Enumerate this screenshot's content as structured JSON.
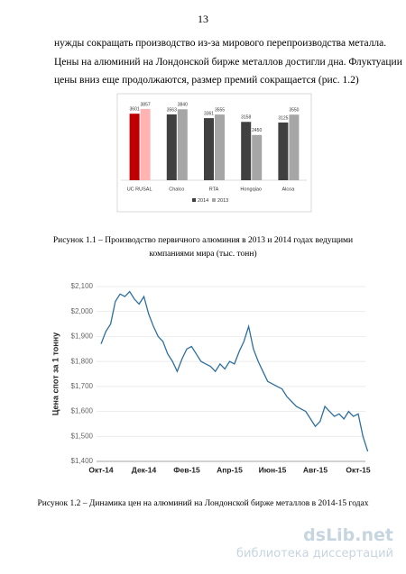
{
  "page_number": "13",
  "paragraph": [
    "нужды сокращать производство из-за мирового перепроизводства металла.",
    "Цены на алюминий на Лондонской бирже металлов достигли дна. Флуктуации",
    "цены вниз еще продолжаются, размер премий сокращается (рис. 1.2)"
  ],
  "chart_data": [
    {
      "type": "bar",
      "categories": [
        "UC RUSAL",
        "Chalco",
        "RTA",
        "Hongqiao",
        "Alcoa"
      ],
      "series": [
        {
          "name": "2014",
          "color": "#404040",
          "colors": [
            "#c00000",
            "#404040",
            "#404040",
            "#404040",
            "#404040"
          ],
          "values": [
            3601,
            3563,
            3361,
            3158,
            3125
          ]
        },
        {
          "name": "2013",
          "color": "#a6a6a6",
          "colors": [
            "#ffb3b3",
            "#a6a6a6",
            "#a6a6a6",
            "#a6a6a6",
            "#a6a6a6"
          ],
          "values": [
            3857,
            3840,
            3555,
            2450,
            3550
          ]
        }
      ],
      "ylim": [
        0,
        4000
      ],
      "legend": "bottom"
    },
    {
      "type": "line",
      "color": "#2e6f9e",
      "y_label": "Цена спот за 1 тонну",
      "categories": [
        "Окт-14",
        null,
        null,
        null,
        null,
        null,
        null,
        null,
        null,
        "Дек-14",
        null,
        null,
        null,
        null,
        null,
        null,
        null,
        null,
        "Фев-15",
        null,
        null,
        null,
        null,
        null,
        null,
        null,
        null,
        "Апр-15",
        null,
        null,
        null,
        null,
        null,
        null,
        null,
        null,
        "Июн-15",
        null,
        null,
        null,
        null,
        null,
        null,
        null,
        null,
        "Авг-15",
        null,
        null,
        null,
        null,
        null,
        null,
        null,
        null,
        "Окт-15",
        null,
        null
      ],
      "values": [
        1870,
        1920,
        1950,
        2040,
        2070,
        2060,
        2080,
        2050,
        2030,
        2060,
        1990,
        1940,
        1900,
        1880,
        1830,
        1800,
        1760,
        1810,
        1850,
        1860,
        1830,
        1800,
        1790,
        1780,
        1760,
        1790,
        1770,
        1800,
        1790,
        1840,
        1880,
        1940,
        1850,
        1800,
        1760,
        1720,
        1710,
        1700,
        1690,
        1660,
        1640,
        1620,
        1610,
        1600,
        1570,
        1540,
        1560,
        1620,
        1600,
        1580,
        1590,
        1570,
        1600,
        1580,
        1590,
        1500,
        1440
      ],
      "ylim": [
        1400,
        2100
      ],
      "yticks": [
        {
          "value": 1400,
          "label": "$1,400"
        },
        {
          "value": 1500,
          "label": "$1,500"
        },
        {
          "value": 1600,
          "label": "$1,600"
        },
        {
          "value": 1700,
          "label": "$1,700"
        },
        {
          "value": 1800,
          "label": "$1,800"
        },
        {
          "value": 1900,
          "label": "$1,900"
        },
        {
          "value": 2000,
          "label": "$2,000"
        },
        {
          "value": 2100,
          "label": "$2,100"
        }
      ],
      "grid": true
    }
  ],
  "captions": [
    [
      "Рисунок 1.1 – Производство первичного алюминия в 2013 и 2014 годах ведущими",
      "компаниями мира (тыс. тонн)"
    ],
    [
      "Рисунок 1.2 – Динамика цен на алюминий на Лондонской бирже металлов в 2014-15 годах"
    ]
  ],
  "watermark": {
    "logo": "dsLib.net",
    "tagline": "библиотека диссертаций"
  }
}
